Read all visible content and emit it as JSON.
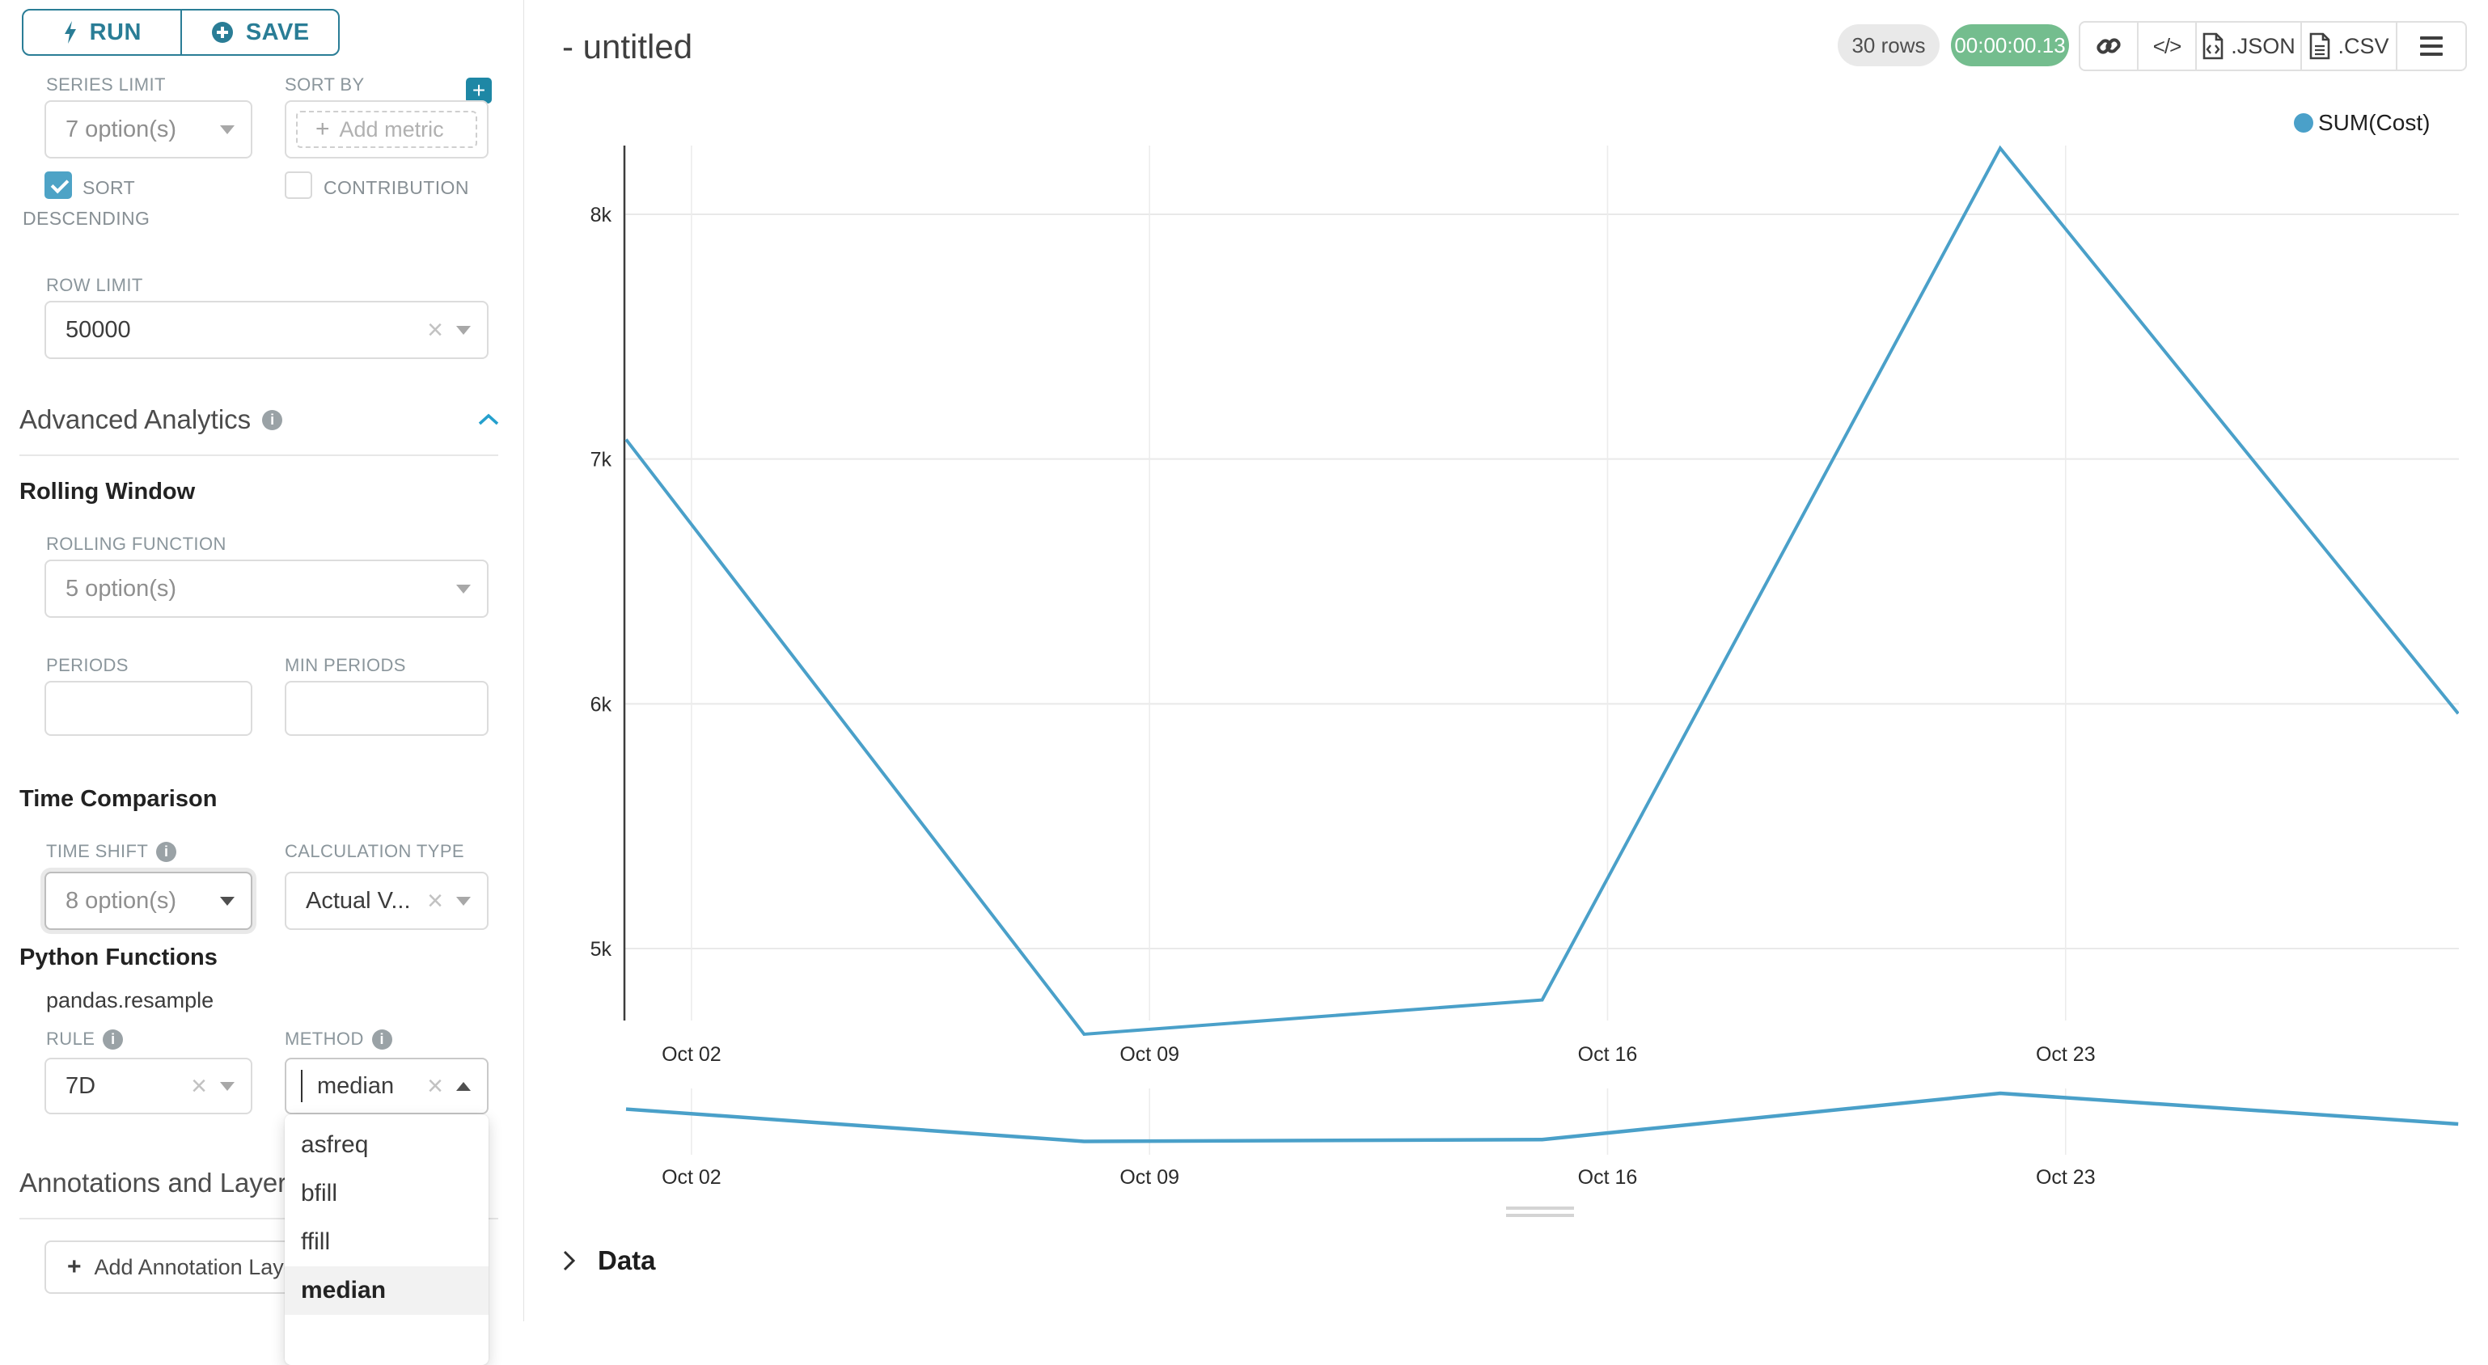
{
  "colors": {
    "primary_teal": "#2a7d96",
    "plus_button_teal": "#1e87a5",
    "checkbox_blue": "#4ea3c6",
    "accent_chevron_blue": "#25a0cd",
    "timer_badge_green": "#74bd8e",
    "line_blue": "#4aa0c9"
  },
  "sidebar": {
    "run_label": "RUN",
    "save_label": "SAVE",
    "series_limit": {
      "label": "SERIES LIMIT",
      "value": "7 option(s)"
    },
    "sort_by": {
      "label": "SORT BY",
      "placeholder": "Add metric"
    },
    "sort_descending": {
      "label_line1": "SORT",
      "label_line2": "DESCENDING",
      "checked": true
    },
    "contribution": {
      "label": "CONTRIBUTION",
      "checked": false
    },
    "row_limit": {
      "label": "ROW LIMIT",
      "value": "50000"
    },
    "advanced_analytics": {
      "title": "Advanced Analytics"
    },
    "rolling_window": {
      "title": "Rolling Window",
      "rolling_function": {
        "label": "ROLLING FUNCTION",
        "value": "5 option(s)"
      },
      "periods": {
        "label": "PERIODS",
        "value": ""
      },
      "min_periods": {
        "label": "MIN PERIODS",
        "value": ""
      }
    },
    "time_comparison": {
      "title": "Time Comparison",
      "time_shift": {
        "label": "TIME SHIFT",
        "value": "8 option(s)"
      },
      "calculation_type": {
        "label": "CALCULATION TYPE",
        "value": "Actual V..."
      }
    },
    "python_functions": {
      "title": "Python Functions",
      "subtitle": "pandas.resample",
      "rule": {
        "label": "RULE",
        "value": "7D"
      },
      "method": {
        "label": "METHOD",
        "value": "median",
        "options": [
          "asfreq",
          "bfill",
          "ffill",
          "median"
        ],
        "highlighted": "median"
      }
    },
    "annotations": {
      "title": "Annotations and Layers",
      "add_button_label": "Add Annotation Layer"
    }
  },
  "header": {
    "title": "- untitled",
    "rows_badge": "30 rows",
    "timer_badge": "00:00:00.13",
    "export": {
      "json_label": ".JSON",
      "csv_label": ".CSV"
    }
  },
  "results_panel": {
    "title": "Data"
  },
  "chart_data": {
    "type": "line",
    "title": "- untitled",
    "legend_position": "top-right",
    "grid": true,
    "color": "#4aa0c9",
    "series": [
      {
        "name": "SUM(Cost)",
        "points": [
          {
            "date": "Oct 01",
            "day": 0,
            "value": 7080
          },
          {
            "date": "Oct 08",
            "day": 7,
            "value": 4650
          },
          {
            "date": "Oct 15",
            "day": 14,
            "value": 4790
          },
          {
            "date": "Oct 22",
            "day": 21,
            "value": 8270
          },
          {
            "date": "Oct 29",
            "day": 28,
            "value": 5960
          }
        ]
      }
    ],
    "x_ticks": [
      {
        "label": "Oct 02",
        "day": 1
      },
      {
        "label": "Oct 09",
        "day": 8
      },
      {
        "label": "Oct 16",
        "day": 15
      },
      {
        "label": "Oct 23",
        "day": 22
      }
    ],
    "y_ticks": [
      {
        "label": "5k",
        "value": 5000
      },
      {
        "label": "6k",
        "value": 6000
      },
      {
        "label": "7k",
        "value": 7000
      },
      {
        "label": "8k",
        "value": 8000
      }
    ],
    "y_axis_range": [
      4700,
      8280
    ],
    "has_mini_preview": true
  }
}
